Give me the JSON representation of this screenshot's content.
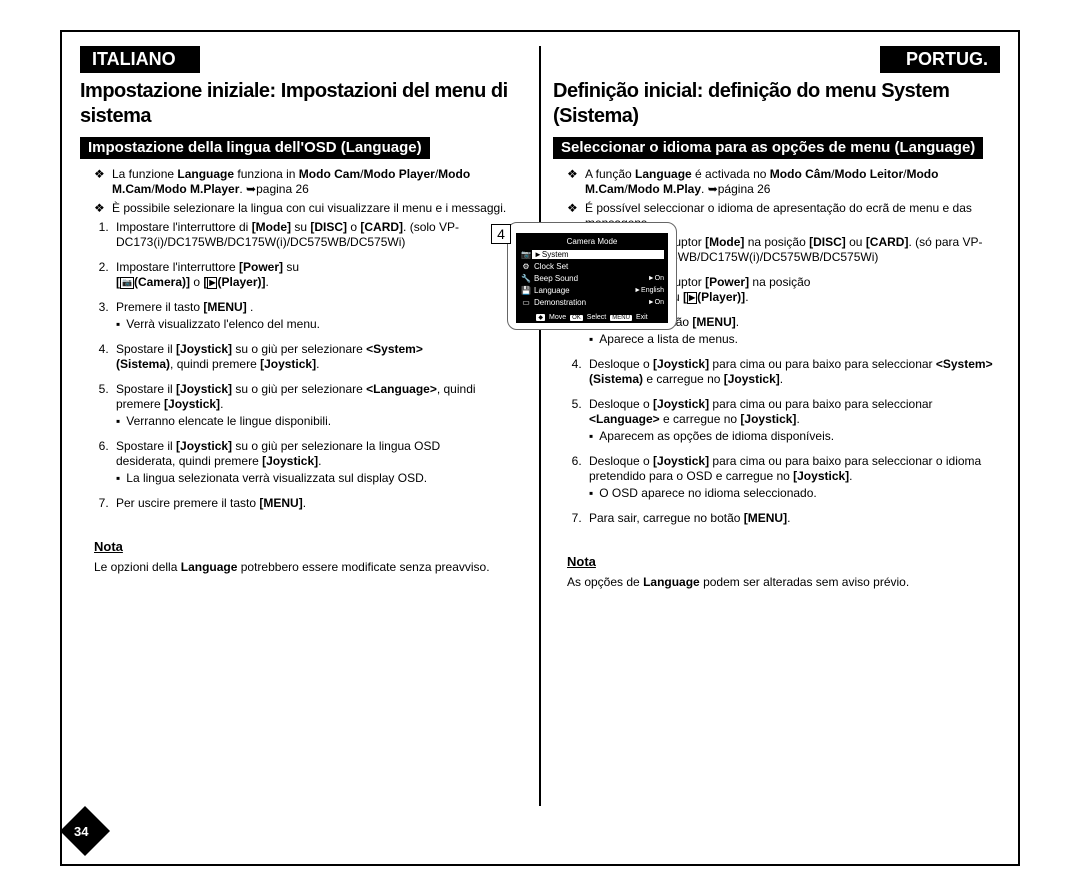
{
  "pageNumber": "34",
  "lcd": {
    "stepDigit": "4",
    "title": "Camera Mode",
    "rows": [
      {
        "icon": "📷",
        "label": "►System",
        "value": "",
        "selected": true
      },
      {
        "icon": "⚙",
        "label": "Clock Set",
        "value": ""
      },
      {
        "icon": "🔧",
        "label": "Beep Sound",
        "value": "►On"
      },
      {
        "icon": "💾",
        "label": "Language",
        "value": "►English"
      },
      {
        "icon": "▭",
        "label": "Demonstration",
        "value": "►On"
      }
    ],
    "footer": {
      "move": "Move",
      "select": "Select",
      "exit": "Exit"
    }
  },
  "left": {
    "langTab": "ITALIANO",
    "title": "Impostazione iniziale: Impostazioni del menu di sistema",
    "section": "Impostazione della lingua dell'OSD (Language)",
    "bullets": [
      "La funzione <b>Language</b> funziona in <b>Modo Cam</b>/<b>Modo Player</b>/<b>Modo M.Cam</b>/<b>Modo M.Player</b>. ➥pagina 26",
      "È possibile selezionare la lingua con cui visualizzare il menu e i messaggi."
    ],
    "steps": [
      "Impostare l'interruttore di <b>[Mode]</b> su <b>[DISC]</b> o <b>[CARD]</b>. (solo VP-DC173(i)/DC175WB/DC175W(i)/DC575WB/DC575Wi)",
      "Impostare l'interruttore <b>[Power]</b> su<br><b>[<span class='camera-ico'>📷</span>(Camera)]</b> o <b>[<span class='play-ico'>▶</span>(Player)]</b>.",
      "Premere il tasto <b>[MENU]</b> .<ul><li>Verrà visualizzato l'elenco del menu.</li></ul>",
      "Spostare il <b>[Joystick]</b> su o giù per selezionare <b>&lt;System&gt; (Sistema)</b>, quindi premere <b>[Joystick]</b>.",
      "Spostare il <b>[Joystick]</b> su o giù per selezionare <b>&lt;Language&gt;</b>, quindi premere <b>[Joystick]</b>.<ul><li>Verranno elencate le lingue disponibili.</li></ul>",
      "Spostare il <b>[Joystick]</b> su o giù per selezionare la lingua OSD desiderata, quindi premere <b>[Joystick]</b>.<ul><li>La lingua selezionata verrà visualizzata sul display OSD.</li></ul>",
      "Per uscire premere il tasto <b>[MENU]</b>."
    ],
    "notaLabel": "Nota",
    "notaText": "Le opzioni della <b>Language</b> potrebbero essere modificate senza preavviso."
  },
  "right": {
    "langTab": "PORTUG.",
    "title": "Definição inicial: definição do menu System (Sistema)",
    "section": "Seleccionar o idioma para as opções de menu (Language)",
    "bullets": [
      "A função <b>Language</b> é activada no <b>Modo Câm</b>/<b>Modo Leitor</b>/<b>Modo M.Cam</b>/<b>Modo M.Play</b>. ➥página 26",
      "É possível seleccionar o idioma de apresentação do ecrã de menu e das mensagens."
    ],
    "steps": [
      "Coloque o interruptor <b>[Mode]</b> na posição <b>[DISC]</b> ou <b>[CARD]</b>. (só para VP-DC173(i)/DC175WB/DC175W(i)/DC575WB/DC575Wi)",
      "Coloque o interruptor <b>[Power]</b> na posição<br><b>[<span class='camera-ico'>📷</span>(Camera)]</b> ou <b>[<span class='play-ico'>▶</span>(Player)]</b>.",
      "Carregue no botão <b>[MENU]</b>.<ul><li>Aparece a lista de menus.</li></ul>",
      "Desloque o <b>[Joystick]</b> para cima ou para baixo para seleccionar <b>&lt;System&gt; (Sistema)</b> e carregue no <b>[Joystick]</b>.",
      "Desloque o <b>[Joystick]</b> para cima ou para baixo para seleccionar <b>&lt;Language&gt;</b> e carregue no <b>[Joystick]</b>.<ul><li>Aparecem as opções de idioma disponíveis.</li></ul>",
      "Desloque o <b>[Joystick]</b> para cima ou para baixo para seleccionar o idioma pretendido para o OSD e carregue no <b>[Joystick]</b>.<ul><li>O OSD aparece no idioma seleccionado.</li></ul>",
      "Para sair, carregue no botão <b>[MENU]</b>."
    ],
    "notaLabel": "Nota",
    "notaText": "As opções de <b>Language</b> podem ser alteradas sem aviso prévio."
  }
}
